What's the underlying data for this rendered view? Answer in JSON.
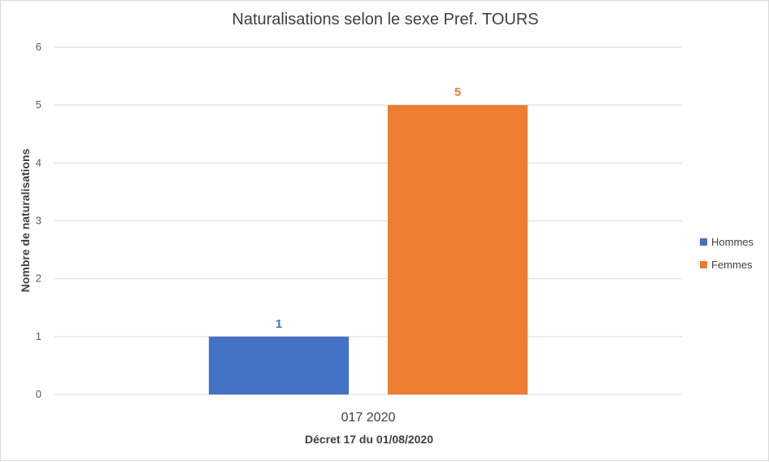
{
  "chart_data": {
    "type": "bar",
    "title": "Naturalisations selon le sexe  Pref. TOURS",
    "xlabel": "Décret 17 du 01/08/2020",
    "ylabel": "Nombre de naturalisations",
    "categories": [
      "017 2020"
    ],
    "series": [
      {
        "name": "Hommes",
        "values": [
          1
        ],
        "color": "#4472c4"
      },
      {
        "name": "Femmes",
        "values": [
          5
        ],
        "color": "#ed7d31"
      }
    ],
    "ylim": [
      0,
      6
    ],
    "yticks": [
      "0",
      "1",
      "2",
      "3",
      "4",
      "5",
      "6"
    ],
    "grid": true,
    "legend": "right"
  }
}
